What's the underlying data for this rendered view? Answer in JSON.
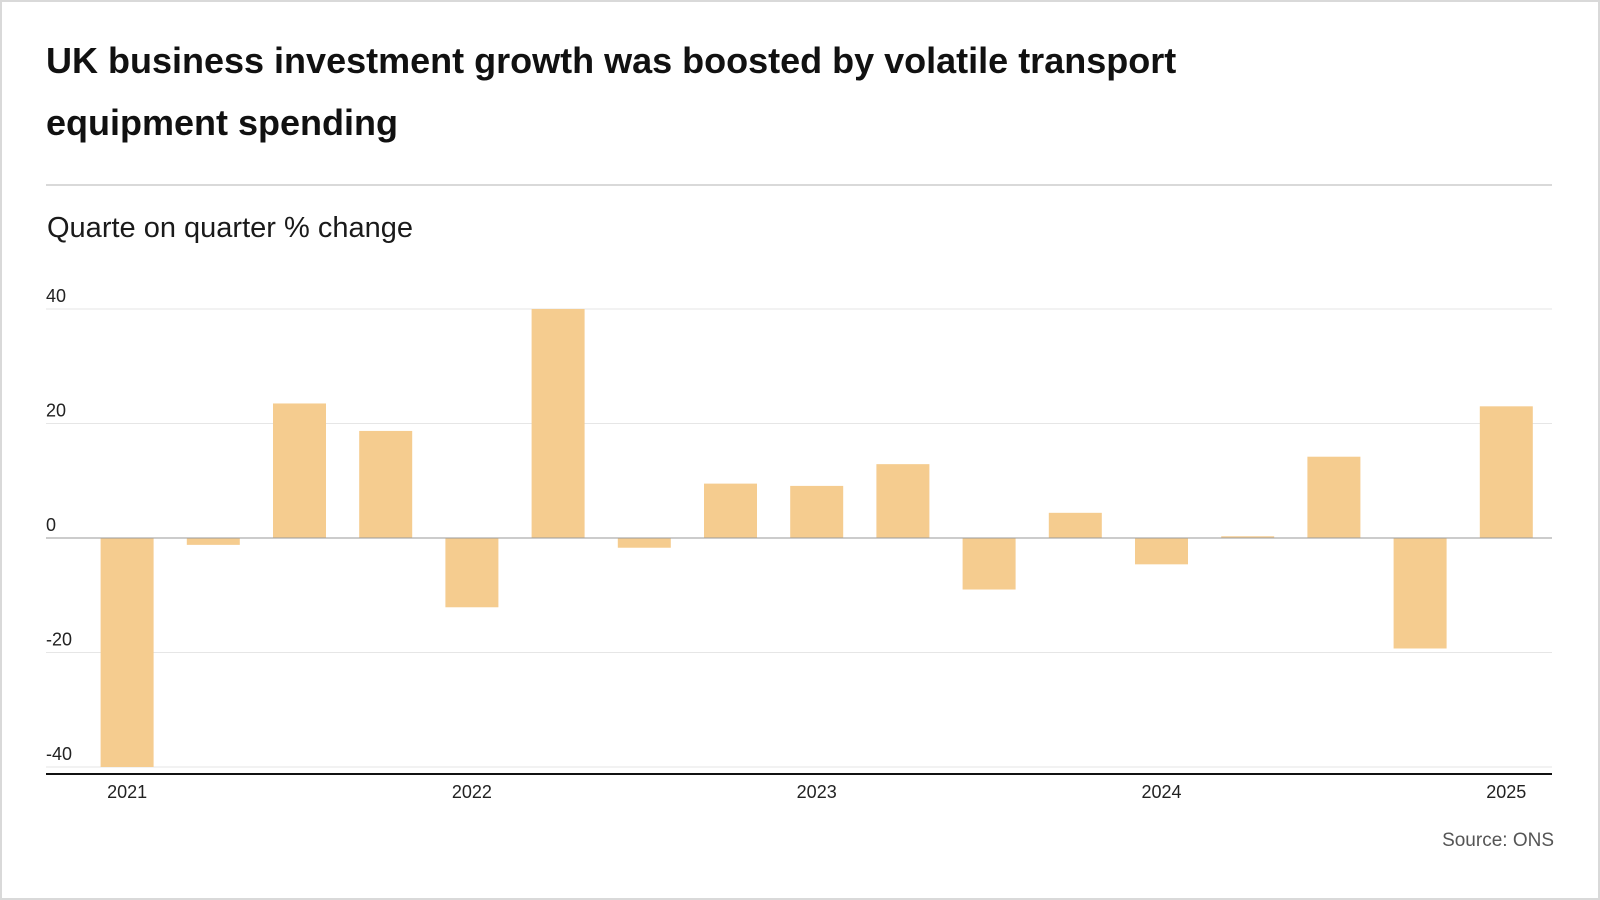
{
  "title": "UK business investment growth was boosted by volatile transport equipment spending",
  "subtitle": "Quarte on quarter % change",
  "source": "Source: ONS",
  "colors": {
    "bar": "#f5cc8f",
    "grid": "#e6e6e6",
    "axis": "#111111",
    "text": "#222222"
  },
  "chart_data": {
    "type": "bar",
    "categories": [
      "2021 Q1",
      "2021 Q2",
      "2021 Q3",
      "2021 Q4",
      "2022 Q1",
      "2022 Q2",
      "2022 Q3",
      "2022 Q4",
      "2023 Q1",
      "2023 Q2",
      "2023 Q3",
      "2023 Q4",
      "2024 Q1",
      "2024 Q2",
      "2024 Q3",
      "2024 Q4",
      "2025 Q1"
    ],
    "values": [
      -40.0,
      -1.2,
      23.5,
      18.7,
      -12.1,
      40.0,
      -1.7,
      9.5,
      9.1,
      12.9,
      -9.0,
      4.4,
      -4.6,
      0.3,
      14.2,
      -19.3,
      23.0
    ],
    "x_tick_labels": [
      "2021",
      "2022",
      "2023",
      "2024",
      "2025"
    ],
    "x_tick_indices": [
      0,
      4,
      8,
      12,
      16
    ],
    "y_ticks": [
      40,
      20,
      0,
      -20,
      -40
    ],
    "y_tick_labels": [
      "40",
      "20",
      "0",
      "-20",
      "-40"
    ],
    "ylim": [
      -40,
      40
    ],
    "xlabel": "",
    "ylabel": "Quarte on quarter % change",
    "grid": true,
    "legend": false
  }
}
